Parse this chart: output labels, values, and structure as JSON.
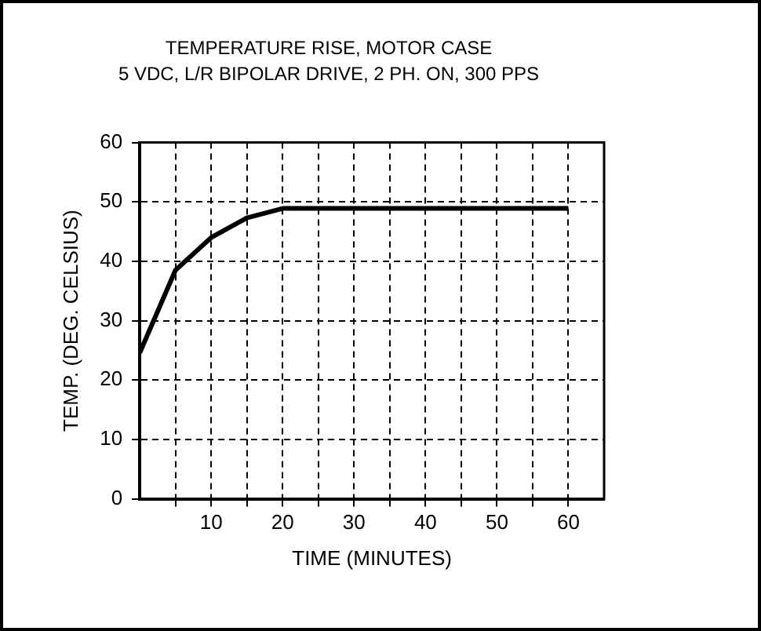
{
  "chart_data": {
    "type": "line",
    "title": "TEMPERATURE RISE, MOTOR CASE",
    "subtitle": "5 VDC, L/R BIPOLAR DRIVE, 2 PH. ON, 300 PPS",
    "xlabel": "TIME (MINUTES)",
    "ylabel": "TEMP. (DEG. CELSIUS)",
    "x": [
      0,
      5,
      10,
      15,
      20,
      60
    ],
    "series": [
      {
        "color": "#000000",
        "values": [
          24.6,
          38.5,
          44,
          47.3,
          48.9,
          48.9
        ]
      }
    ],
    "xlim": [
      0,
      65
    ],
    "xticks": [
      {
        "value": 5,
        "label": null
      },
      10,
      {
        "value": 15,
        "label": null
      },
      20,
      {
        "value": 25,
        "label": null
      },
      30,
      {
        "value": 35,
        "label": null
      },
      40,
      {
        "value": 45,
        "label": null
      },
      50,
      {
        "value": 55,
        "label": null
      },
      60
    ],
    "ylim": [
      0,
      60
    ],
    "yticks": [
      0,
      10,
      20,
      30,
      40,
      50,
      60
    ],
    "grid": true,
    "legend": false,
    "marker": "none",
    "line_style": "solid"
  }
}
